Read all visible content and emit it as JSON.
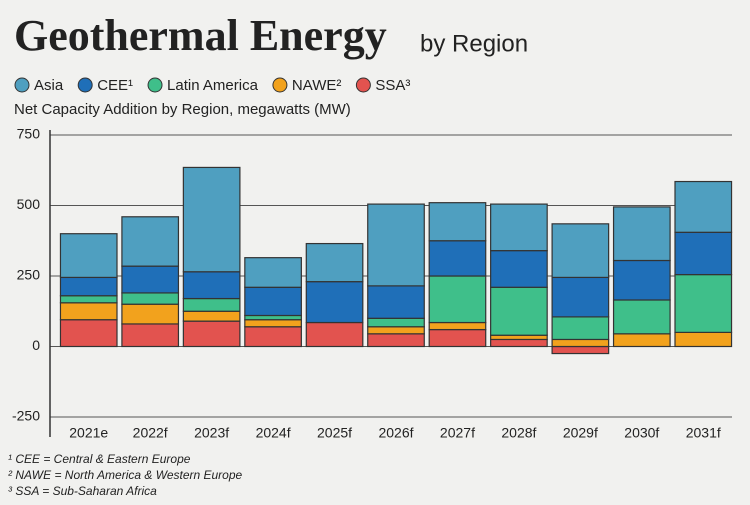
{
  "chart_data": {
    "type": "stacked_bar",
    "title": "Geothermal Energy",
    "title_suffix": "by Region",
    "subtitle": "Net Capacity Addition by Region, megawatts (MW)",
    "categories": [
      "2021e",
      "2022f",
      "2023f",
      "2024f",
      "2025f",
      "2026f",
      "2027f",
      "2028f",
      "2029f",
      "2030f",
      "2031f"
    ],
    "series": [
      {
        "name": "SSA³",
        "color": "#e2534f",
        "values": [
          95,
          80,
          90,
          70,
          85,
          45,
          60,
          25,
          -25,
          0,
          0
        ]
      },
      {
        "name": "NAWE²",
        "color": "#f2a21d",
        "values": [
          60,
          70,
          35,
          25,
          0,
          25,
          25,
          15,
          25,
          45,
          50
        ]
      },
      {
        "name": "Latin America",
        "color": "#3fbf8a",
        "values": [
          25,
          40,
          45,
          15,
          0,
          30,
          165,
          170,
          80,
          120,
          205
        ]
      },
      {
        "name": "CEE¹",
        "color": "#1f6fb8",
        "values": [
          65,
          95,
          95,
          100,
          145,
          115,
          125,
          130,
          140,
          140,
          150
        ]
      },
      {
        "name": "Asia",
        "color": "#4f9fc0",
        "values": [
          155,
          175,
          370,
          105,
          135,
          290,
          135,
          165,
          190,
          190,
          180
        ]
      }
    ],
    "legend_order": [
      4,
      3,
      2,
      1,
      0
    ],
    "ylim": [
      -250,
      750
    ],
    "yticks": [
      -250,
      0,
      250,
      500,
      750
    ],
    "grid": true,
    "notes": [
      "¹ CEE = Central & Eastern Europe",
      "² NAWE = North America & Western Europe",
      "³ SSA = Sub-Saharan Africa"
    ]
  }
}
